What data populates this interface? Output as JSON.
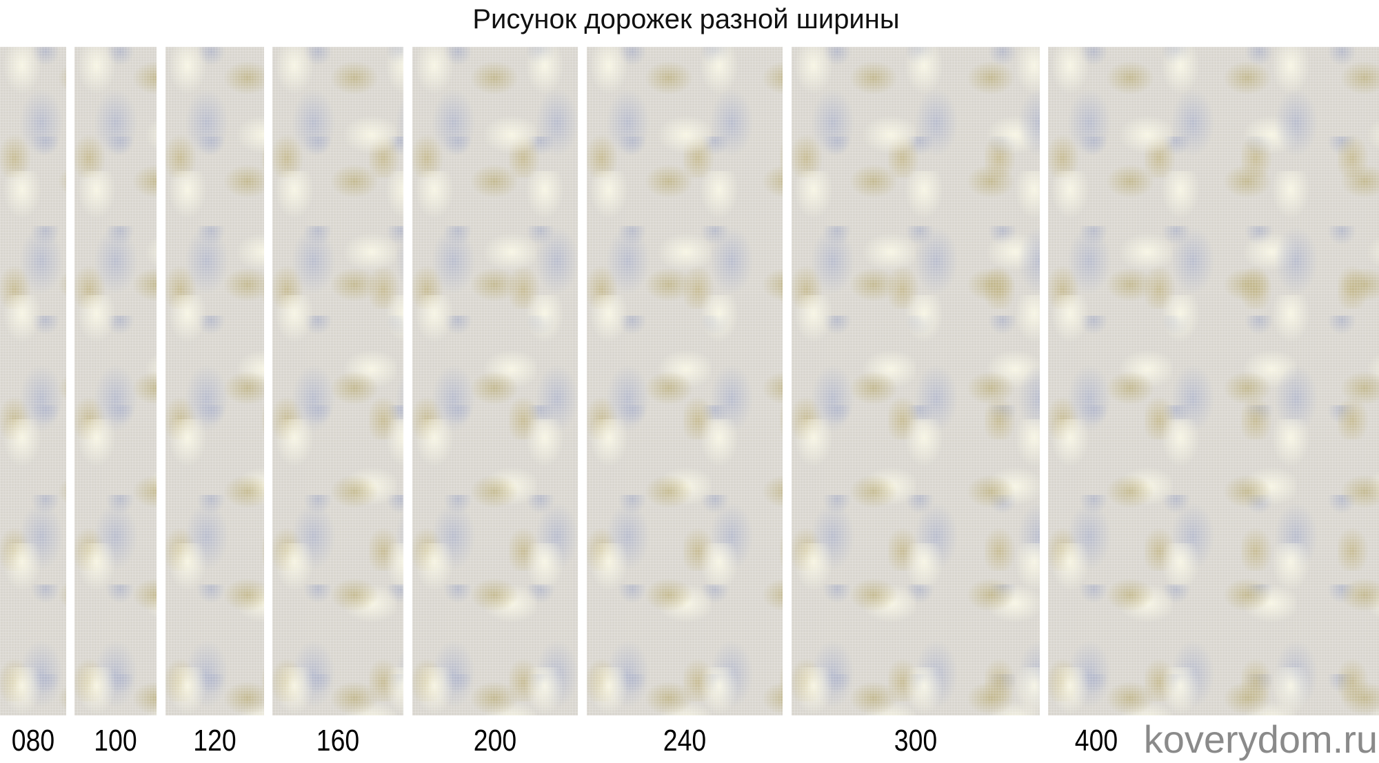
{
  "title": "Рисунок дорожек разной ширины",
  "runners": [
    {
      "width_label": "080"
    },
    {
      "width_label": "100"
    },
    {
      "width_label": "120"
    },
    {
      "width_label": "160"
    },
    {
      "width_label": "200"
    },
    {
      "width_label": "240"
    },
    {
      "width_label": "300"
    },
    {
      "width_label": "400"
    }
  ],
  "watermark": "koverydom.ru",
  "colors": {
    "beige": "#c4b78a",
    "grey_blue": "#b7bccd",
    "cream": "#f6f3df"
  }
}
